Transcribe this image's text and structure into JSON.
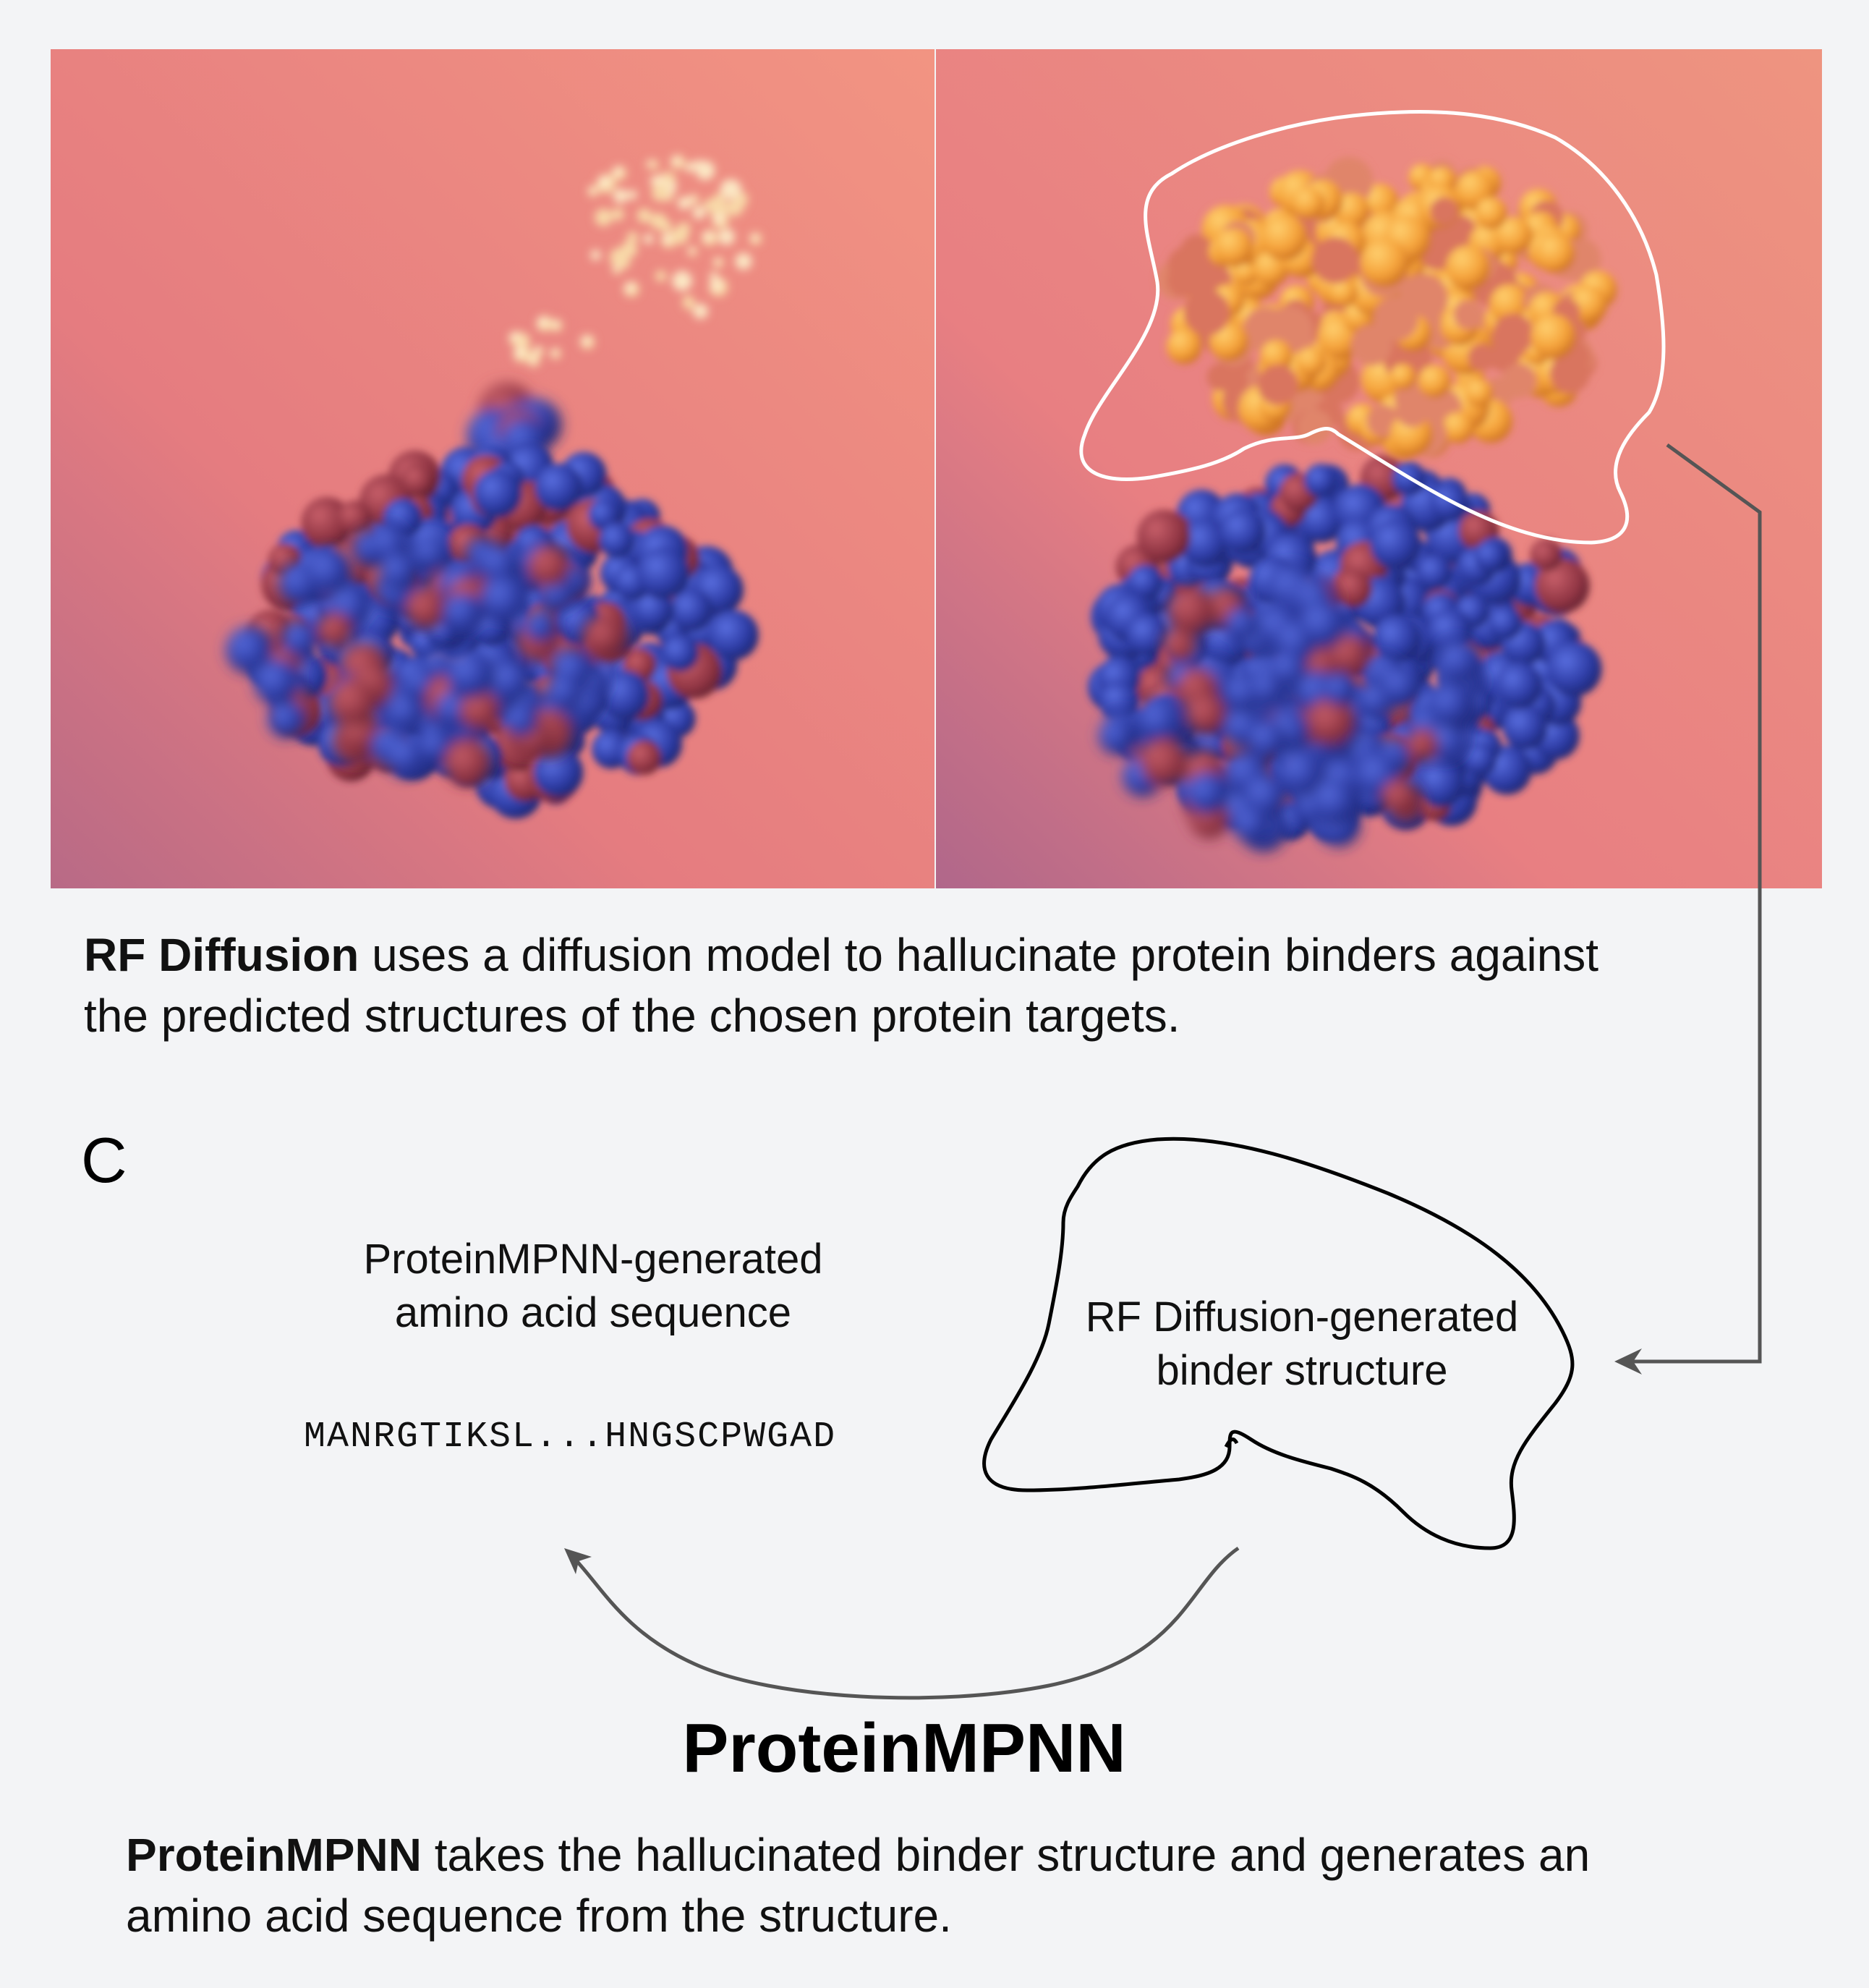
{
  "panel_b": {
    "caption_bold": "RF Diffusion",
    "caption_rest_line1": " uses a diffusion model to hallucinate protein binders against",
    "caption_line2": "the predicted structures of the chosen protein targets."
  },
  "panel_c": {
    "letter": "C",
    "sequence_label_line1": "ProteinMPNN-generated",
    "sequence_label_line2": "amino acid sequence",
    "sequence": "MANRGTIKSL...HNGSCPWGAD",
    "structure_label_line1": "RF Diffusion-generated",
    "structure_label_line2": "binder structure",
    "method_title": "ProteinMPNN",
    "caption_bold": "ProteinMPNN",
    "caption_rest_line1": " takes the hallucinated binder structure and generates an",
    "caption_line2": "amino acid sequence from the structure."
  },
  "colors": {
    "background": "#f3f4f6",
    "render_bg": "#e98a86",
    "target_blue": "#2f3ea8",
    "target_red": "#9a3a48",
    "binder_orange": "#f5a53a",
    "arrow_gray": "#555555"
  }
}
